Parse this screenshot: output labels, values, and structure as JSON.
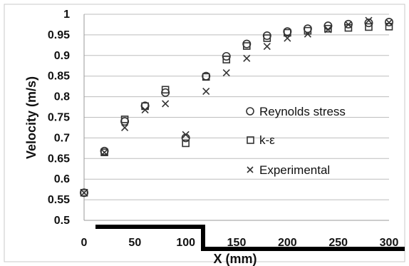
{
  "chart_data": {
    "type": "scatter",
    "xlabel": "X (mm)",
    "ylabel": "Velocity (m/s)",
    "xlim": [
      0,
      300
    ],
    "ylim": [
      0.5,
      1.0
    ],
    "x_ticks": [
      "0",
      "50",
      "100",
      "150",
      "200",
      "250",
      "300"
    ],
    "y_ticks": [
      "0.5",
      "0.55",
      "0.6",
      "0.65",
      "0.7",
      "0.75",
      "0.8",
      "0.85",
      "0.9",
      "0.95",
      "1"
    ],
    "grid": "horizontal",
    "legend_position": "right",
    "series": [
      {
        "name": "Reynolds stress",
        "marker": "circle",
        "x": [
          0,
          20,
          40,
          60,
          80,
          100,
          120,
          140,
          160,
          180,
          200,
          220,
          240,
          260,
          280,
          300
        ],
        "y": [
          0.567,
          0.668,
          0.74,
          0.778,
          0.81,
          0.7,
          0.85,
          0.898,
          0.928,
          0.948,
          0.958,
          0.965,
          0.972,
          0.976,
          0.979,
          0.981
        ]
      },
      {
        "name": "k-ε",
        "marker": "square",
        "x": [
          0,
          20,
          40,
          60,
          80,
          100,
          120,
          140,
          160,
          180,
          200,
          220,
          240,
          260,
          280,
          300
        ],
        "y": [
          0.567,
          0.665,
          0.745,
          0.777,
          0.817,
          0.687,
          0.848,
          0.89,
          0.923,
          0.942,
          0.955,
          0.96,
          0.965,
          0.967,
          0.969,
          0.97
        ]
      },
      {
        "name": "Experimental",
        "marker": "x",
        "x": [
          0,
          20,
          40,
          60,
          80,
          100,
          120,
          140,
          160,
          180,
          200,
          220,
          240,
          260,
          280,
          300
        ],
        "y": [
          0.567,
          0.665,
          0.725,
          0.768,
          0.783,
          0.708,
          0.813,
          0.858,
          0.893,
          0.922,
          0.942,
          0.952,
          0.963,
          0.975,
          0.985,
          0.98
        ]
      }
    ]
  }
}
